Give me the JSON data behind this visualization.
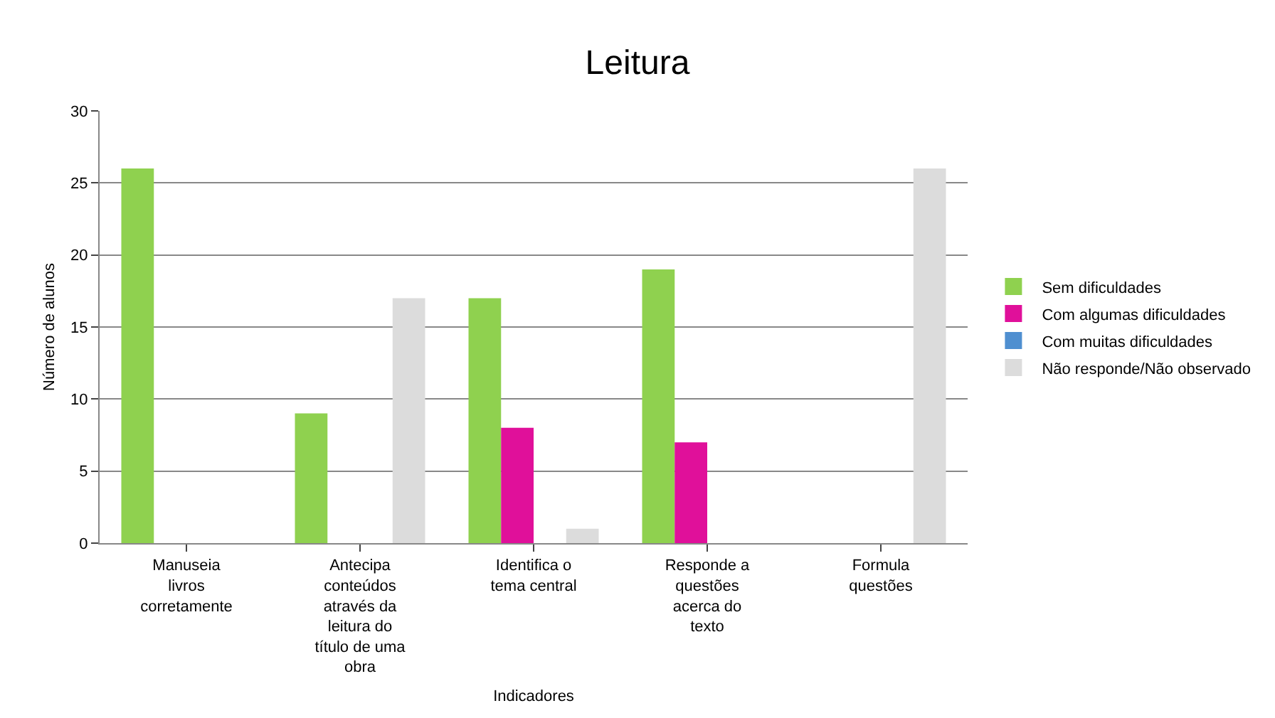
{
  "chart_data": {
    "type": "bar",
    "title": "Leitura",
    "xlabel": "Indicadores",
    "ylabel": "Número de alunos",
    "categories": [
      "Manuseia livros corretamente",
      "Antecipa conteúdos através da leitura do título de uma obra",
      "Identifica o tema central",
      "Responde a questões acerca do texto",
      "Formula questões"
    ],
    "series": [
      {
        "name": "Sem dificuldades",
        "color": "#8fd14f",
        "values": [
          26,
          9,
          17,
          19,
          0
        ]
      },
      {
        "name": "Com algumas dificuldades",
        "color": "#e0109a",
        "values": [
          0,
          0,
          8,
          7,
          0
        ]
      },
      {
        "name": "Com muitas dificuldades",
        "color": "#4f8fd0",
        "values": [
          0,
          0,
          0,
          0,
          0
        ]
      },
      {
        "name": "Não responde/Não observado",
        "color": "#dcdcdc",
        "values": [
          0,
          17,
          1,
          0,
          26
        ]
      }
    ],
    "ylim": [
      0,
      30
    ],
    "yticks": [
      0,
      5,
      10,
      15,
      20,
      25,
      30
    ],
    "grid": "y",
    "legend": "right"
  }
}
